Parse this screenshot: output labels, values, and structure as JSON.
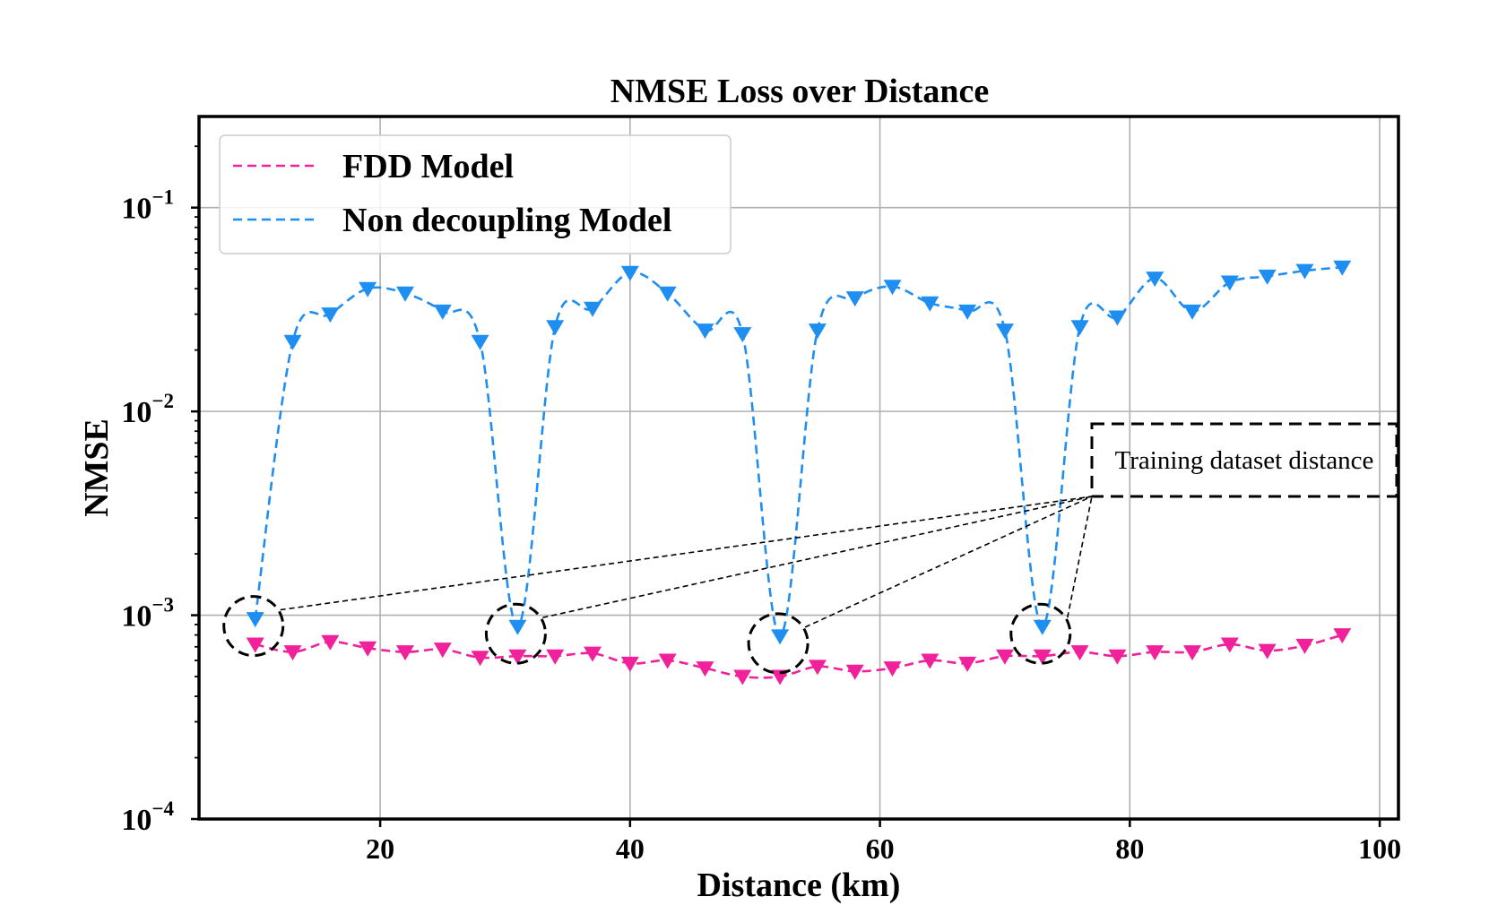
{
  "chart_data": {
    "type": "line",
    "title": "NMSE Loss over Distance",
    "xlabel": "Distance (km)",
    "ylabel": "NMSE",
    "yscale": "log",
    "xlim": [
      5.5,
      101.5
    ],
    "ylim": [
      0.0001,
      0.28
    ],
    "grid": true,
    "legend_position": "top-left",
    "xticks": [
      20,
      40,
      60,
      80,
      100
    ],
    "xtick_labels": [
      "20",
      "40",
      "60",
      "80",
      "100"
    ],
    "yticks": [
      0.0001,
      0.001,
      0.01,
      0.1
    ],
    "ytick_labels": [
      {
        "base": "10",
        "exp": "−4"
      },
      {
        "base": "10",
        "exp": "−3"
      },
      {
        "base": "10",
        "exp": "−2"
      },
      {
        "base": "10",
        "exp": "−1"
      }
    ],
    "x": [
      10,
      13,
      16,
      19,
      22,
      25,
      28,
      31,
      34,
      37,
      40,
      43,
      46,
      49,
      52,
      55,
      58,
      61,
      64,
      67,
      70,
      73,
      76,
      79,
      82,
      85,
      88,
      91,
      94,
      97
    ],
    "series": [
      {
        "name": "FDD Model",
        "color": "#f0219a",
        "marker": "triangle-down",
        "linestyle": "dashed",
        "values": [
          0.00072,
          0.00066,
          0.00074,
          0.00069,
          0.00066,
          0.00068,
          0.00062,
          0.00063,
          0.00063,
          0.00065,
          0.00058,
          0.0006,
          0.00055,
          0.0005,
          0.0005,
          0.00056,
          0.00053,
          0.00055,
          0.0006,
          0.00058,
          0.00063,
          0.00063,
          0.00066,
          0.00063,
          0.00066,
          0.00066,
          0.00072,
          0.00067,
          0.00071,
          0.0008
        ]
      },
      {
        "name": "Non decoupling Model",
        "color": "#1f8ef1",
        "marker": "triangle-down",
        "linestyle": "dashed",
        "values": [
          0.00096,
          0.022,
          0.03,
          0.04,
          0.038,
          0.031,
          0.022,
          0.00088,
          0.026,
          0.032,
          0.048,
          0.038,
          0.025,
          0.024,
          0.00079,
          0.025,
          0.036,
          0.041,
          0.034,
          0.031,
          0.025,
          0.00088,
          0.026,
          0.029,
          0.045,
          0.031,
          0.043,
          0.046,
          0.049,
          0.051
        ]
      }
    ],
    "annotation": {
      "text": "Training dataset distance",
      "highlighted_distances": [
        10,
        31,
        52,
        73
      ]
    }
  }
}
